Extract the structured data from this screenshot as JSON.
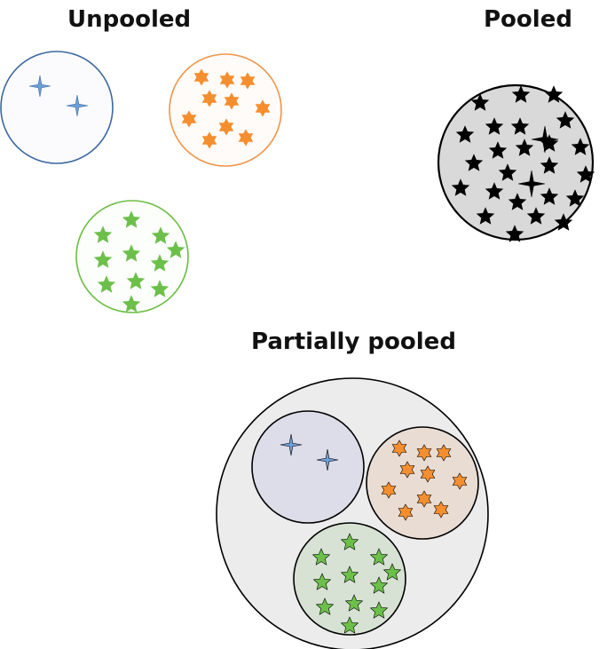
{
  "labels": {
    "unpooled": "Unpooled",
    "pooled": "Pooled",
    "partially_pooled": "Partially pooled"
  },
  "colors": {
    "blue_group_fill": "#fbfbfd",
    "blue_group_stroke": "#3b69a3",
    "blue_star_fill": "#6f9fd6",
    "orange_group_fill": "#fefbf8",
    "orange_group_stroke": "#f0954a",
    "orange_star_fill": "#f58e2f",
    "green_group_fill": "#fcfefb",
    "green_group_stroke": "#6cbd45",
    "green_star_fill": "#6cc04a",
    "pooled_fill": "#d9d9d9",
    "pooled_star_fill": "#000000",
    "partial_outer_fill": "#ececec",
    "partial_blue_fill": "#dcdde8",
    "partial_orange_fill": "#e9dcd2",
    "partial_green_fill": "#d7e2d4",
    "partial_stroke": "#000000"
  }
}
